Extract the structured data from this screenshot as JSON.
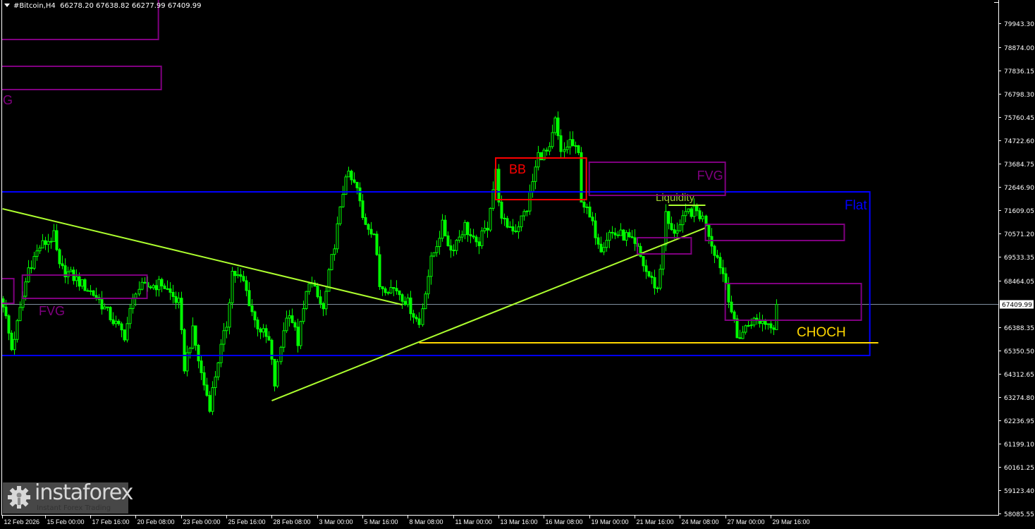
{
  "header": {
    "symbol": "#Bitcoin,H4",
    "open": "66278.20",
    "high": "67638.82",
    "low": "66277.99",
    "close": "67409.99"
  },
  "watermark": {
    "brand": "instaforex",
    "tagline": "Instant Forex Trading"
  },
  "colors": {
    "background": "#000000",
    "candle": "#00ff00",
    "flat": "#0000ff",
    "trendline": "#adff2f",
    "fvg": "#800080",
    "bb": "#ff0000",
    "choch": "#ffd700",
    "price_line": "#8090a0",
    "axis_text": "#ffffff"
  },
  "chart_data": {
    "type": "candlestick",
    "timeframe": "H4",
    "ylim": [
      57500,
      81000
    ],
    "grid": false,
    "current_price": "67409.99",
    "last_bar": {
      "time": "03-30 00:00",
      "open": 66278.2,
      "high": 67638.82,
      "low": 66277.99,
      "close": 67409.99
    },
    "y_ticks": [
      "79943.30",
      "78874.00",
      "77836.15",
      "76798.30",
      "75760.45",
      "74722.60",
      "73684.75",
      "72646.90",
      "71609.05",
      "70571.20",
      "69533.35",
      "68464.05",
      "66388.35",
      "65350.50",
      "64312.65",
      "63274.80",
      "62236.95",
      "61199.10",
      "60161.25",
      "59123.40",
      "58085.55"
    ],
    "x_ticks": [
      "12 Feb 2026",
      "15 Feb 00:00",
      "17 Feb 16:00",
      "20 Feb 08:00",
      "23 Feb 00:00",
      "25 Feb 16:00",
      "28 Feb 08:00",
      "3 Mar 00:00",
      "5 Mar 16:00",
      "8 Mar 08:00",
      "11 Mar 00:00",
      "13 Mar 16:00",
      "16 Mar 08:00",
      "19 Mar 00:00",
      "21 Mar 16:00",
      "24 Mar 08:00",
      "27 Mar 00:00",
      "29 Mar 16:00"
    ],
    "close_path": [
      [
        "02-12 12:00",
        67457
      ],
      [
        "02-13 00:00",
        65413
      ],
      [
        "02-13 08:00",
        66514
      ],
      [
        "02-14 00:00",
        69030
      ],
      [
        "02-14 16:00",
        69974
      ],
      [
        "02-15 12:00",
        70445
      ],
      [
        "02-15 20:00",
        69030
      ],
      [
        "02-16 12:00",
        68715
      ],
      [
        "02-18 00:00",
        67772
      ],
      [
        "02-19 00:00",
        66671
      ],
      [
        "02-19 16:00",
        66042
      ],
      [
        "02-20 08:00",
        68086
      ],
      [
        "02-21 20:00",
        68338
      ],
      [
        "02-22 20:00",
        67457
      ],
      [
        "02-23 04:00",
        64627
      ],
      [
        "02-23 16:00",
        66199
      ],
      [
        "02-24 04:00",
        64312
      ],
      [
        "02-24 16:00",
        62897
      ],
      [
        "02-25 04:00",
        64941
      ],
      [
        "02-25 16:00",
        66514
      ],
      [
        "02-26 00:00",
        68873
      ],
      [
        "02-26 16:00",
        68401
      ],
      [
        "02-27 08:00",
        66671
      ],
      [
        "02-28 04:00",
        65728
      ],
      [
        "02-28 12:00",
        63841
      ],
      [
        "03-01 00:00",
        66357
      ],
      [
        "03-01 08:00",
        67143
      ],
      [
        "03-01 20:00",
        65728
      ],
      [
        "03-02 12:00",
        68558
      ],
      [
        "03-03 08:00",
        67143
      ],
      [
        "03-03 16:00",
        68715
      ],
      [
        "03-04 08:00",
        71546
      ],
      [
        "03-04 16:00",
        73276
      ],
      [
        "03-05 08:00",
        72552
      ],
      [
        "03-05 16:00",
        71231
      ],
      [
        "03-06 08:00",
        70602
      ],
      [
        "03-06 16:00",
        68244
      ],
      [
        "03-07 16:00",
        68086
      ],
      [
        "03-08 08:00",
        67457
      ],
      [
        "03-09 00:00",
        66514
      ],
      [
        "03-09 08:00",
        68086
      ],
      [
        "03-09 16:00",
        69344
      ],
      [
        "03-10 08:00",
        70917
      ],
      [
        "03-10 20:00",
        69816
      ],
      [
        "03-11 16:00",
        70917
      ],
      [
        "03-12 08:00",
        69974
      ],
      [
        "03-13 00:00",
        70917
      ],
      [
        "03-13 04:00",
        71860
      ],
      [
        "03-13 12:00",
        73276
      ],
      [
        "03-13 20:00",
        71074
      ],
      [
        "03-14 16:00",
        70760
      ],
      [
        "03-15 08:00",
        71703
      ],
      [
        "03-16 00:00",
        74062
      ],
      [
        "03-16 16:00",
        74219
      ],
      [
        "03-17 00:00",
        75571
      ],
      [
        "03-17 08:00",
        74062
      ],
      [
        "03-17 20:00",
        74691
      ],
      [
        "03-18 08:00",
        74062
      ],
      [
        "03-18 12:00",
        72175
      ],
      [
        "03-19 00:00",
        71231
      ],
      [
        "03-19 16:00",
        69974
      ],
      [
        "03-20 04:00",
        70602
      ],
      [
        "03-21 04:00",
        70445
      ],
      [
        "03-21 20:00",
        69816
      ],
      [
        "03-22 08:00",
        68873
      ],
      [
        "03-23 00:00",
        68086
      ],
      [
        "03-23 04:00",
        69030
      ],
      [
        "03-23 12:00",
        71389
      ],
      [
        "03-23 20:00",
        70602
      ],
      [
        "03-24 08:00",
        70917
      ],
      [
        "03-24 20:00",
        71546
      ],
      [
        "03-25 08:00",
        71546
      ],
      [
        "03-25 20:00",
        71074
      ],
      [
        "03-26 04:00",
        70131
      ],
      [
        "03-26 16:00",
        69187
      ],
      [
        "03-27 00:00",
        68401
      ],
      [
        "03-27 08:00",
        67143
      ],
      [
        "03-27 16:00",
        65885
      ],
      [
        "03-28 04:00",
        66357
      ],
      [
        "03-28 12:00",
        66671
      ],
      [
        "03-29 00:00",
        66671
      ],
      [
        "03-29 20:00",
        66514
      ],
      [
        "03-30 00:00",
        67409.99
      ]
    ],
    "annotations": {
      "flat": {
        "label": "Flat",
        "t1": "02-12 00:00",
        "t2": "04-04 12:00",
        "p1": 72426,
        "p2": 65130
      },
      "downtrend": {
        "t1": "02-12 12:00",
        "p1": 71672,
        "t2": "03-08 00:00",
        "p2": 67394
      },
      "uptrend": {
        "t1": "02-28 08:00",
        "p1": 63117,
        "t2": "03-25 20:00",
        "p2": 70822
      },
      "choch": {
        "label": "CHOCH",
        "t1": "03-09 00:00",
        "t2": "04-05 00:00",
        "p": 65696
      },
      "liquidity": {
        "label": "Liquidity",
        "t1": "03-23 16:00",
        "t2": "03-25 20:00",
        "p": 71829
      },
      "bb": {
        "label": "BB",
        "t1": "03-13 12:00",
        "t2": "03-18 20:00",
        "p1": 73936,
        "p2": 72080
      },
      "fvg_zones": [
        {
          "label": "",
          "t1": "02-11 12:00",
          "t2": "02-21 16:00",
          "p1": 81200,
          "p2": 79220
        },
        {
          "label": "",
          "t1": "02-11 12:00",
          "t2": "02-21 20:00",
          "p1": 78025,
          "p2": 76987
        },
        {
          "label": "",
          "t1": "02-11 12:00",
          "t2": "02-13 04:00",
          "p1": 68558,
          "p2": 67457
        },
        {
          "label": "FVG",
          "t1": "02-13 16:00",
          "t2": "02-21 00:00",
          "p1": 68715,
          "p2": 67677
        },
        {
          "label": "FVG",
          "t1": "03-19 00:00",
          "t2": "03-27 00:00",
          "p1": 73747,
          "p2": 72269
        },
        {
          "label": "",
          "t1": "03-21 20:00",
          "t2": "03-25 00:00",
          "p1": 70382,
          "p2": 69659
        },
        {
          "label": "",
          "t1": "03-25 20:00",
          "t2": "04-03 00:00",
          "p1": 70980,
          "p2": 70256
        },
        {
          "label": "",
          "t1": "03-27 00:00",
          "t2": "04-04 00:00",
          "p1": 68338,
          "p2": 66703
        }
      ],
      "clipped_fvg_label": "G"
    }
  }
}
